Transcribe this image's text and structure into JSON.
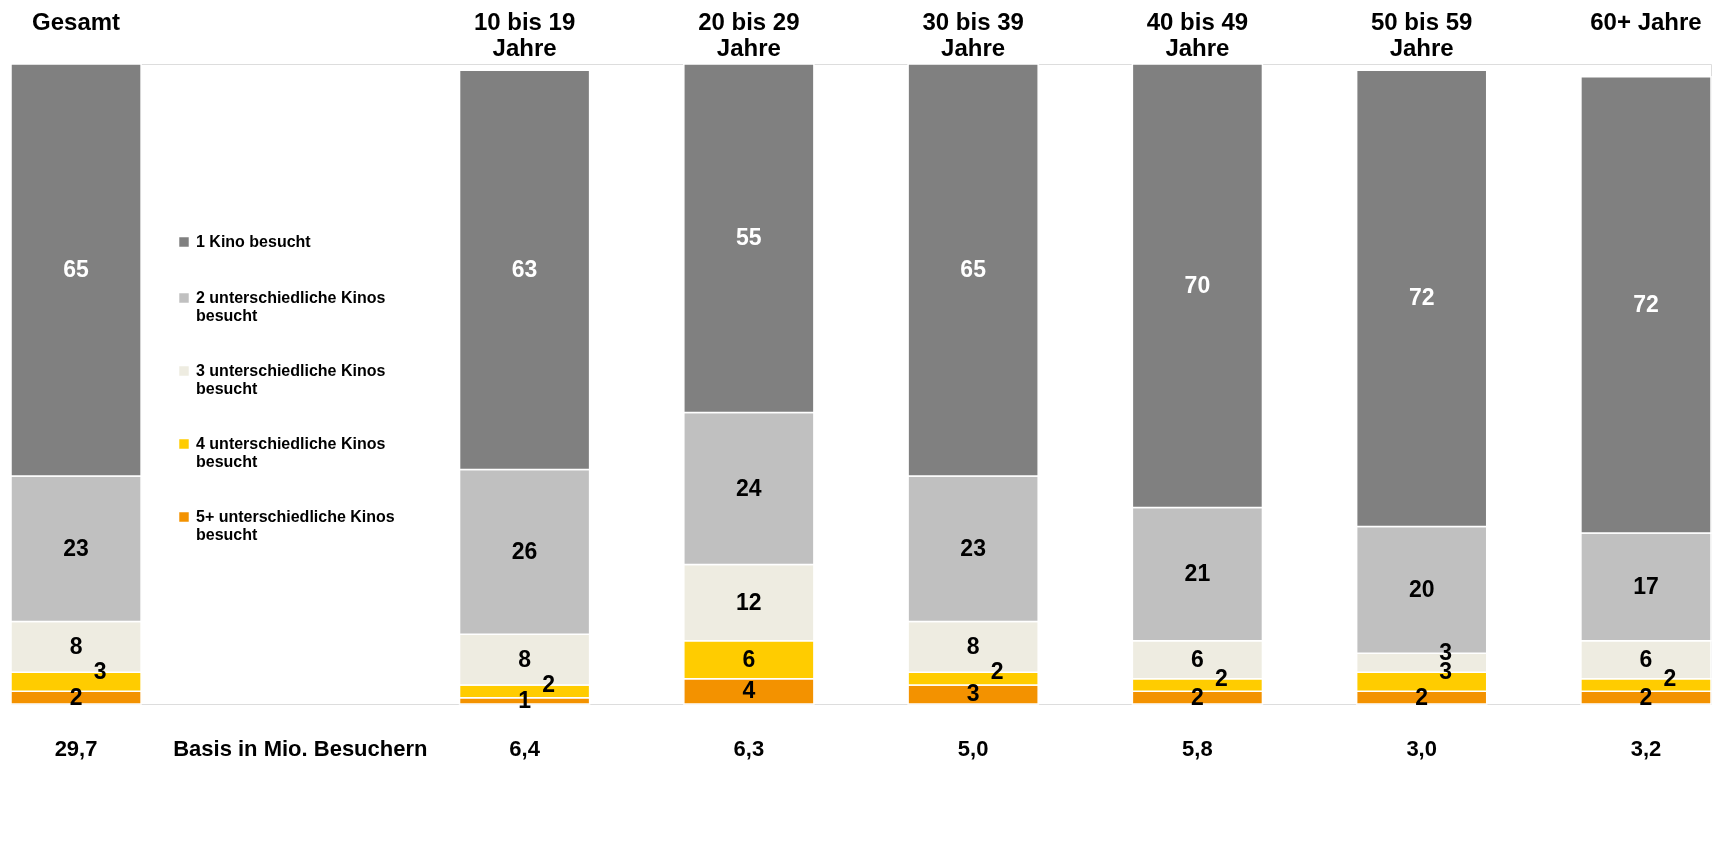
{
  "chart_data": {
    "type": "bar",
    "stacked": true,
    "data_labels": true,
    "legend": "left",
    "categories": [
      "Gesamt",
      null,
      "10 bis 19 Jahre",
      "20 bis 29 Jahre",
      "30 bis 39 Jahre",
      "40 bis 49 Jahre",
      "50 bis 59 Jahre",
      "60+ Jahre"
    ],
    "series": [
      {
        "name": "5+ unterschiedliche Kinos besucht",
        "color": "#f39200",
        "values": [
          2,
          null,
          1,
          4,
          3,
          2,
          2,
          2
        ]
      },
      {
        "name": "4 unterschiedliche Kinos besucht",
        "color": "#ffcc00",
        "values": [
          3,
          null,
          2,
          6,
          2,
          2,
          3,
          2
        ]
      },
      {
        "name": "3 unterschiedliche Kinos besucht",
        "color": "#eeece1",
        "values": [
          8,
          null,
          8,
          12,
          8,
          6,
          3,
          6
        ]
      },
      {
        "name": "2 unterschiedliche Kinos besucht",
        "color": "#c0c0c0",
        "values": [
          23,
          null,
          26,
          24,
          23,
          21,
          20,
          17
        ]
      },
      {
        "name": "1 Kino besucht",
        "color": "#808080",
        "values": [
          65,
          null,
          63,
          55,
          65,
          70,
          72,
          72
        ]
      }
    ],
    "annotations": [
      "29,7",
      "Basis in Mio. Besuchern",
      "6,4",
      "6,3",
      "5,0",
      "5,8",
      "3,0",
      "3,2"
    ]
  }
}
